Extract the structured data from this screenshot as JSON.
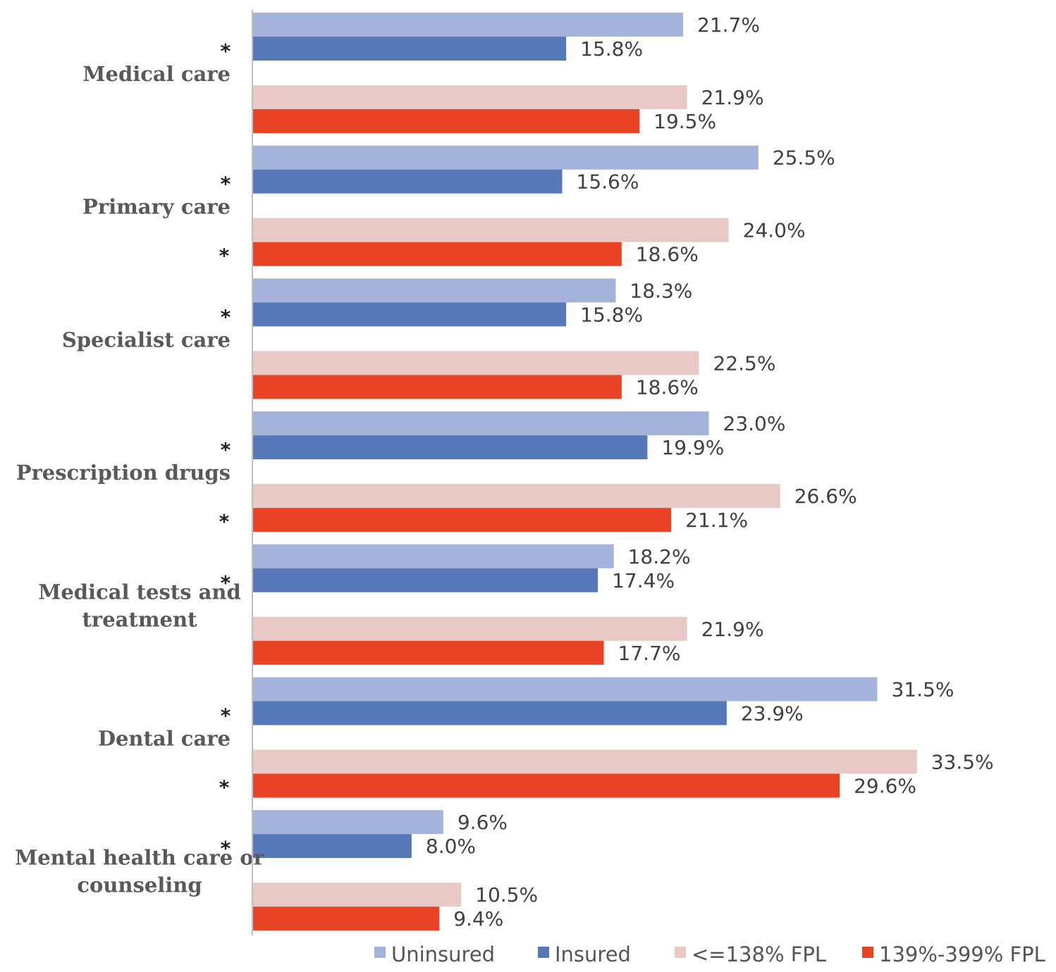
{
  "colors": {
    "Uninsured": "#A4B3DA",
    "Insured": "#5779B9",
    "<=138% FPL": "#E8C9C6",
    "139%-399% FPL": "#E94427",
    "axis": "#BFBFBF"
  },
  "chart_data": {
    "type": "bar",
    "orientation": "horizontal",
    "title": "",
    "xlabel": "",
    "ylabel": "",
    "xlim": [
      0,
      35
    ],
    "grid": false,
    "legend_position": "bottom",
    "categories": [
      [
        "Medical care"
      ],
      [
        "Primary care"
      ],
      [
        "Specialist care"
      ],
      [
        "Prescription drugs"
      ],
      [
        "Medical tests and",
        "treatment"
      ],
      [
        "Dental care"
      ],
      [
        "Mental health care or",
        "counseling"
      ]
    ],
    "series": [
      {
        "name": "Uninsured",
        "values": [
          21.7,
          25.5,
          18.3,
          23.0,
          18.2,
          31.5,
          9.6
        ],
        "labels": [
          "21.7%",
          "25.5%",
          "18.3%",
          "23.0%",
          "18.2%",
          "31.5%",
          "9.6%"
        ]
      },
      {
        "name": "Insured",
        "values": [
          15.8,
          15.6,
          15.8,
          19.9,
          17.4,
          23.9,
          8.0
        ],
        "labels": [
          "15.8%",
          "15.6%",
          "15.8%",
          "19.9%",
          "17.4%",
          "23.9%",
          "8.0%"
        ]
      },
      {
        "name": "<=138% FPL",
        "values": [
          21.9,
          24.0,
          22.5,
          26.6,
          21.9,
          33.5,
          10.5
        ],
        "labels": [
          "21.9%",
          "24.0%",
          "22.5%",
          "26.6%",
          "21.9%",
          "33.5%",
          "10.5%"
        ]
      },
      {
        "name": "139%-399% FPL",
        "values": [
          19.5,
          18.6,
          18.6,
          21.1,
          17.7,
          29.6,
          9.4
        ],
        "labels": [
          "19.5%",
          "18.6%",
          "18.6%",
          "21.1%",
          "17.7%",
          "29.6%",
          "9.4%"
        ]
      }
    ],
    "significance_marker": "*",
    "significant": {
      "insurance": [
        true,
        true,
        true,
        true,
        true,
        true,
        true
      ],
      "income": [
        false,
        true,
        false,
        true,
        false,
        true,
        false
      ]
    }
  }
}
